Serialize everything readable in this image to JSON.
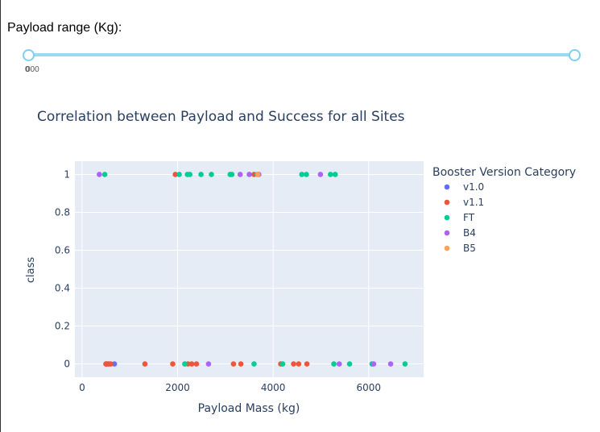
{
  "slider": {
    "label": "Payload range (Kg):",
    "min_mark": "0",
    "max_mark": "000",
    "range": [
      0,
      10000
    ],
    "value": [
      0,
      10000
    ]
  },
  "chart_data": {
    "type": "scatter",
    "title": "Correlation between Payload and Success for all Sites",
    "xlabel": "Payload Mass (kg)",
    "ylabel": "class",
    "xlim": [
      -150,
      7150
    ],
    "ylim": [
      -0.07,
      1.07
    ],
    "xticks": [
      0,
      2000,
      4000,
      6000
    ],
    "yticks": [
      0,
      0.2,
      0.4,
      0.6,
      0.8,
      1
    ],
    "ytick_labels": [
      "0",
      "0.2",
      "0.4",
      "0.6",
      "0.8",
      "1"
    ],
    "grid": true,
    "legend": {
      "title": "Booster Version Category",
      "position": "right"
    },
    "series": [
      {
        "name": "v1.0",
        "color": "#636efa",
        "points": [
          [
            500,
            0
          ],
          [
            525,
            0
          ],
          [
            677,
            0
          ]
        ]
      },
      {
        "name": "v1.1",
        "color": "#ef553b",
        "points": [
          [
            1952,
            1
          ],
          [
            3600,
            1
          ],
          [
            500,
            0
          ],
          [
            540,
            0
          ],
          [
            570,
            0
          ],
          [
            600,
            0
          ],
          [
            1316,
            0
          ],
          [
            1898,
            0
          ],
          [
            2216,
            0
          ],
          [
            2296,
            0
          ],
          [
            2395,
            0
          ],
          [
            3170,
            0
          ],
          [
            3325,
            0
          ],
          [
            4159,
            0
          ],
          [
            4428,
            0
          ],
          [
            4535,
            0
          ],
          [
            4707,
            0
          ]
        ]
      },
      {
        "name": "FT",
        "color": "#00cc96",
        "points": [
          [
            475,
            1
          ],
          [
            2034,
            1
          ],
          [
            2205,
            1
          ],
          [
            2257,
            1
          ],
          [
            2490,
            1
          ],
          [
            2708,
            1
          ],
          [
            3136,
            1
          ],
          [
            3100,
            1
          ],
          [
            3669,
            1
          ],
          [
            4600,
            1
          ],
          [
            4696,
            1
          ],
          [
            5200,
            1
          ],
          [
            5300,
            1
          ],
          [
            2150,
            0
          ],
          [
            3600,
            0
          ],
          [
            4200,
            0
          ],
          [
            5271,
            0
          ],
          [
            5600,
            0
          ],
          [
            6070,
            0
          ],
          [
            6761,
            0
          ]
        ]
      },
      {
        "name": "B4",
        "color": "#ab63fa",
        "points": [
          [
            362,
            1
          ],
          [
            3310,
            1
          ],
          [
            3500,
            1
          ],
          [
            3700,
            1
          ],
          [
            4990,
            1
          ],
          [
            2647,
            0
          ],
          [
            5384,
            0
          ],
          [
            6104,
            0
          ],
          [
            6460,
            0
          ]
        ]
      },
      {
        "name": "B5",
        "color": "#ffa15a",
        "points": [
          [
            3681,
            1
          ]
        ]
      }
    ]
  }
}
